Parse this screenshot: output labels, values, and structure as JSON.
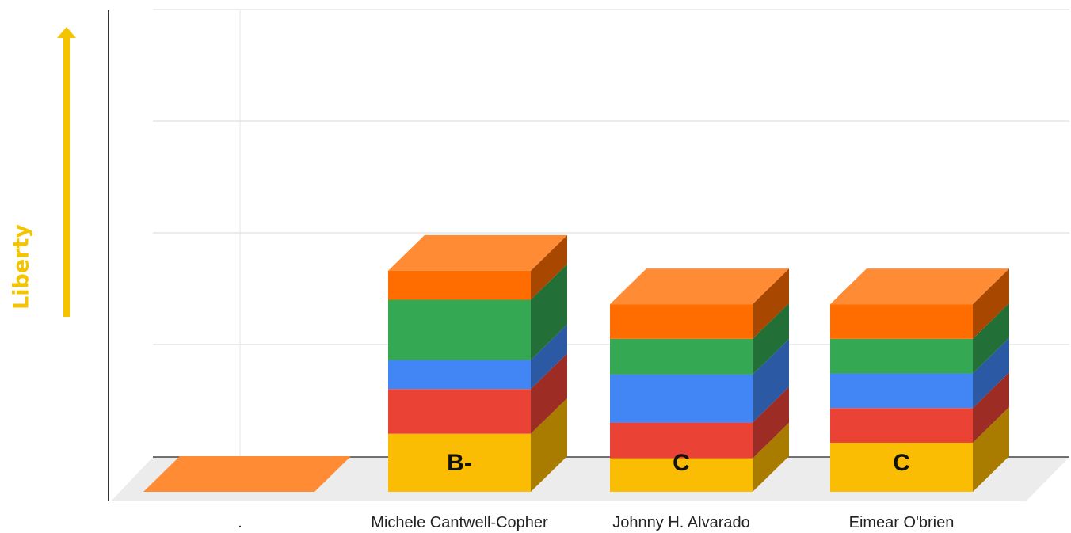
{
  "chart_data": {
    "type": "bar",
    "stacked": true,
    "three_d": true,
    "ylabel": "Liberty",
    "ylim": [
      0,
      40
    ],
    "gridlines": [
      10,
      20,
      30,
      40
    ],
    "categories": [
      ".",
      "Michele Cantwell-Copher",
      "Johnny H. Alvarado",
      "Eimear O'brien"
    ],
    "series": [
      {
        "color": "#fbbc04",
        "side": "#a97c00",
        "values": [
          0,
          5.2,
          3.0,
          4.4
        ]
      },
      {
        "color": "#ea4335",
        "side": "#9c2c24",
        "values": [
          0,
          4.0,
          3.2,
          3.1
        ]
      },
      {
        "color": "#4285f4",
        "side": "#2c59a3",
        "values": [
          0,
          2.6,
          4.3,
          3.1
        ]
      },
      {
        "color": "#34a853",
        "side": "#226f37",
        "values": [
          0,
          5.4,
          3.2,
          3.1
        ]
      },
      {
        "color": "#ff6d01",
        "side": "#a84800",
        "top": "#ff8b35",
        "values": [
          0,
          2.6,
          3.1,
          3.1
        ]
      }
    ],
    "bar_labels": [
      "",
      "B-",
      "C",
      "C"
    ],
    "grid": true,
    "accent_color": "#f5c400",
    "arrow": "up"
  }
}
